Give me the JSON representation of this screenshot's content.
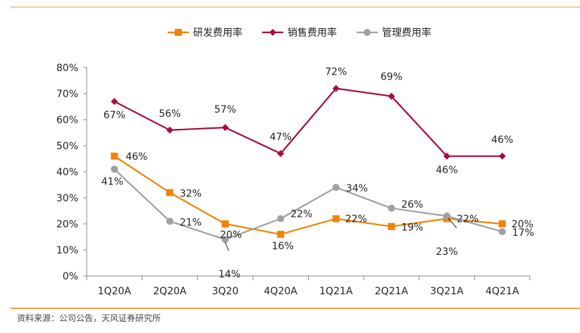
{
  "source": "资料来源：公司公告，天风证券研究所",
  "colors": {
    "rule_top": "#f8c9a0",
    "rule_bottom": "#f0a050"
  },
  "chart_data": {
    "type": "line",
    "categories": [
      "1Q20A",
      "2Q20A",
      "3Q20",
      "4Q20A",
      "1Q21A",
      "2Q21A",
      "3Q21A",
      "4Q21A"
    ],
    "ylim": [
      0,
      80
    ],
    "yticks": [
      0,
      10,
      20,
      30,
      40,
      50,
      60,
      70,
      80
    ],
    "ytick_labels": [
      "0%",
      "10%",
      "20%",
      "30%",
      "40%",
      "50%",
      "60%",
      "70%",
      "80%"
    ],
    "grid": false,
    "legend": "top",
    "series": [
      {
        "name": "研发费用率",
        "color": "#f08300",
        "marker": "square",
        "values": [
          46,
          32,
          20,
          16,
          22,
          19,
          22,
          20
        ],
        "labels": [
          "46%",
          "32%",
          "20%",
          "16%",
          "22%",
          "19%",
          "22%",
          "20%"
        ]
      },
      {
        "name": "销售费用率",
        "color": "#a50f3c",
        "marker": "diamond",
        "values": [
          67,
          56,
          57,
          47,
          72,
          69,
          46,
          46
        ],
        "labels": [
          "67%",
          "56%",
          "57%",
          "47%",
          "72%",
          "69%",
          "46%",
          "46%"
        ]
      },
      {
        "name": "管理费用率",
        "color": "#a0a0a0",
        "marker": "circle",
        "values": [
          41,
          21,
          14,
          22,
          34,
          26,
          23,
          17
        ],
        "labels": [
          "41%",
          "21%",
          "14%",
          "22%",
          "34%",
          "26%",
          "23%",
          "17%"
        ]
      }
    ]
  }
}
